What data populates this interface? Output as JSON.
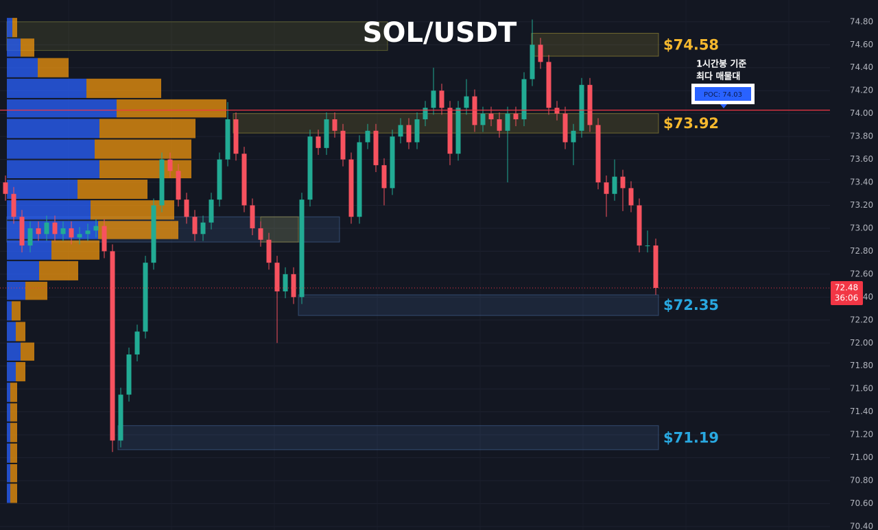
{
  "chart_data": {
    "type": "candlestick",
    "title": "SOL/USDT",
    "categories": [
      null,
      null,
      null,
      null,
      null,
      null,
      null,
      null,
      null,
      null,
      null,
      null,
      null,
      null,
      null,
      null,
      null,
      null,
      null,
      null,
      null,
      null,
      null,
      null,
      null,
      null,
      null,
      null,
      null,
      null,
      null,
      null,
      null,
      null,
      null,
      null,
      null,
      null,
      null,
      null,
      null,
      null,
      null,
      null,
      null,
      null,
      null,
      null,
      null,
      null,
      null,
      null,
      null,
      null,
      null,
      null,
      null,
      null,
      null,
      null,
      null,
      null,
      null,
      null,
      null,
      null,
      null,
      null,
      null,
      null,
      null,
      null,
      null,
      null,
      null,
      null,
      null,
      null,
      null,
      null
    ],
    "open": [
      73.4,
      73.3,
      73.1,
      72.85,
      73.0,
      72.95,
      73.05,
      72.95,
      73.0,
      72.92,
      72.95,
      72.98,
      73.02,
      72.8,
      71.15,
      71.55,
      71.9,
      72.1,
      72.7,
      73.2,
      73.6,
      73.5,
      73.25,
      73.1,
      72.95,
      73.05,
      73.25,
      73.6,
      73.95,
      73.65,
      73.2,
      73.0,
      72.9,
      72.7,
      72.45,
      72.6,
      72.4,
      73.25,
      73.8,
      73.7,
      73.95,
      73.85,
      73.6,
      73.1,
      73.75,
      73.85,
      73.55,
      73.35,
      73.8,
      73.9,
      73.75,
      73.95,
      74.05,
      74.2,
      74.05,
      73.65,
      74.05,
      74.15,
      73.9,
      74.0,
      73.95,
      73.85,
      74.0,
      73.95,
      74.3,
      74.6,
      74.45,
      74.05,
      74.0,
      73.75,
      73.85,
      74.25,
      73.9,
      73.4,
      73.3,
      73.45,
      73.35,
      73.2,
      72.85,
      72.85
    ],
    "high": [
      73.46,
      73.36,
      73.16,
      73.06,
      73.06,
      73.11,
      73.11,
      73.06,
      73.06,
      73.01,
      73.04,
      73.08,
      73.08,
      72.86,
      71.61,
      71.96,
      72.16,
      72.76,
      73.26,
      73.66,
      73.66,
      73.56,
      73.31,
      73.16,
      73.11,
      73.31,
      73.66,
      74.1,
      74.01,
      73.71,
      73.26,
      73.06,
      72.96,
      72.76,
      72.66,
      72.66,
      73.31,
      73.86,
      73.86,
      74.01,
      74.01,
      73.91,
      73.66,
      73.81,
      73.91,
      73.91,
      73.61,
      73.86,
      73.96,
      73.96,
      74.01,
      74.11,
      74.4,
      74.26,
      74.11,
      74.11,
      74.3,
      74.21,
      74.06,
      74.06,
      74.01,
      74.06,
      74.06,
      74.36,
      74.82,
      74.66,
      74.51,
      74.11,
      74.06,
      73.91,
      74.31,
      74.31,
      73.96,
      73.46,
      73.6,
      73.51,
      73.41,
      73.26,
      72.98,
      72.91
    ],
    "low": [
      73.24,
      73.04,
      72.79,
      72.79,
      72.89,
      72.89,
      72.89,
      72.89,
      72.86,
      72.86,
      72.89,
      72.92,
      72.74,
      71.05,
      71.09,
      71.49,
      71.84,
      72.04,
      72.64,
      73.14,
      73.44,
      73.19,
      73.04,
      72.89,
      72.89,
      72.99,
      73.19,
      73.54,
      73.59,
      73.14,
      72.94,
      72.84,
      72.64,
      72.0,
      72.39,
      72.34,
      72.34,
      73.19,
      73.64,
      73.64,
      73.79,
      73.54,
      73.04,
      73.04,
      73.69,
      73.49,
      73.2,
      73.29,
      73.74,
      73.69,
      73.69,
      73.89,
      73.99,
      73.99,
      73.55,
      73.59,
      73.99,
      73.84,
      73.84,
      73.89,
      73.79,
      73.4,
      73.89,
      73.89,
      74.24,
      74.39,
      73.99,
      73.94,
      73.69,
      73.55,
      73.79,
      73.84,
      73.34,
      73.1,
      73.24,
      73.15,
      73.14,
      72.79,
      72.79,
      72.42
    ],
    "close": [
      73.3,
      73.1,
      72.85,
      73.0,
      72.95,
      73.05,
      72.95,
      73.0,
      72.92,
      72.95,
      72.98,
      73.02,
      72.8,
      71.15,
      71.55,
      71.9,
      72.1,
      72.7,
      73.2,
      73.6,
      73.5,
      73.25,
      73.1,
      72.95,
      73.05,
      73.25,
      73.6,
      73.95,
      73.65,
      73.2,
      73.0,
      72.9,
      72.7,
      72.45,
      72.6,
      72.4,
      73.25,
      73.8,
      73.7,
      73.95,
      73.85,
      73.6,
      73.1,
      73.75,
      73.85,
      73.55,
      73.35,
      73.8,
      73.9,
      73.75,
      73.95,
      74.05,
      74.2,
      74.05,
      73.65,
      74.05,
      74.15,
      73.9,
      74.0,
      73.95,
      73.85,
      74.0,
      73.95,
      74.3,
      74.6,
      74.45,
      74.05,
      74.0,
      73.75,
      73.85,
      74.25,
      73.9,
      73.4,
      73.3,
      73.45,
      73.35,
      73.2,
      72.85,
      72.85,
      72.48
    ],
    "up_color": "#22ab94",
    "down_color": "#f7525f",
    "ylim": [
      70.37,
      74.99
    ],
    "yticks": [
      {
        "value": 70.4,
        "label": "70.40"
      },
      {
        "value": 70.6,
        "label": "70.60"
      },
      {
        "value": 70.8,
        "label": "70.80"
      },
      {
        "value": 71.0,
        "label": "71.00"
      },
      {
        "value": 71.2,
        "label": "71.20"
      },
      {
        "value": 71.4,
        "label": "71.40"
      },
      {
        "value": 71.6,
        "label": "71.60"
      },
      {
        "value": 71.8,
        "label": "71.80"
      },
      {
        "value": 72.0,
        "label": "72.00"
      },
      {
        "value": 72.2,
        "label": "72.20"
      },
      {
        "value": 72.4,
        "label": "72.40"
      },
      {
        "value": 72.6,
        "label": "72.60"
      },
      {
        "value": 72.8,
        "label": "72.80"
      },
      {
        "value": 73.0,
        "label": "73.00"
      },
      {
        "value": 73.2,
        "label": "73.20"
      },
      {
        "value": 73.4,
        "label": "73.40"
      },
      {
        "value": 73.6,
        "label": "73.60"
      },
      {
        "value": 73.8,
        "label": "73.80"
      },
      {
        "value": 74.0,
        "label": "74.00"
      },
      {
        "value": 74.2,
        "label": "74.20"
      },
      {
        "value": 74.4,
        "label": "74.40"
      },
      {
        "value": 74.6,
        "label": "74.60"
      },
      {
        "value": 74.8,
        "label": "74.80"
      }
    ],
    "grid": true,
    "volume_profile": {
      "bins": [
        74.84,
        74.66,
        74.49,
        74.31,
        74.13,
        73.96,
        73.78,
        73.6,
        73.43,
        73.25,
        73.07,
        72.9,
        72.72,
        72.54,
        72.37,
        72.19,
        72.01,
        71.84,
        71.66,
        71.48,
        71.31,
        71.13,
        70.95,
        70.78,
        70.6
      ],
      "buy": [
        8,
        20,
        45,
        116,
        160,
        135,
        128,
        135,
        103,
        122,
        133,
        65,
        47,
        27,
        7,
        13,
        20,
        13,
        5,
        5,
        5,
        5,
        5,
        5
      ],
      "sell": [
        7,
        20,
        45,
        109,
        160,
        140,
        141,
        134,
        102,
        122,
        117,
        70,
        57,
        32,
        13,
        14,
        20,
        14,
        10,
        10,
        10,
        10,
        10,
        10
      ],
      "buy_color": "#2962ff",
      "sell_color": "#f0950e"
    },
    "zones": [
      {
        "top": 74.8,
        "bottom": 74.55,
        "color": "#8a8a3a"
      },
      {
        "top": 74.7,
        "bottom": 74.5,
        "color": "#b3a13a",
        "label": "$74.58",
        "label_color": "#f5b82e"
      },
      {
        "top": 74.0,
        "bottom": 73.83,
        "color": "#b3a13a",
        "label": "$73.92",
        "label_color": "#f5b82e"
      },
      {
        "top": 73.1,
        "bottom": 72.88,
        "color": "#4a6fa5"
      },
      {
        "top": 73.1,
        "bottom": 72.88,
        "color": "#b3a13a"
      },
      {
        "top": 72.42,
        "bottom": 72.24,
        "color": "#4a6fa5",
        "label": "$72.35",
        "label_color": "#29a8e0"
      },
      {
        "top": 71.28,
        "bottom": 71.07,
        "color": "#4a6fa5",
        "label": "$71.19",
        "label_color": "#29a8e0"
      }
    ],
    "poc": {
      "value": 74.03,
      "label": "POC: 74.03",
      "note": [
        "1시간봉 기준",
        "최다 매물대"
      ],
      "color": "#f23645"
    },
    "last_price": {
      "value": 72.48,
      "label": "72.48",
      "countdown": "36:06",
      "color": "#f23645"
    }
  }
}
